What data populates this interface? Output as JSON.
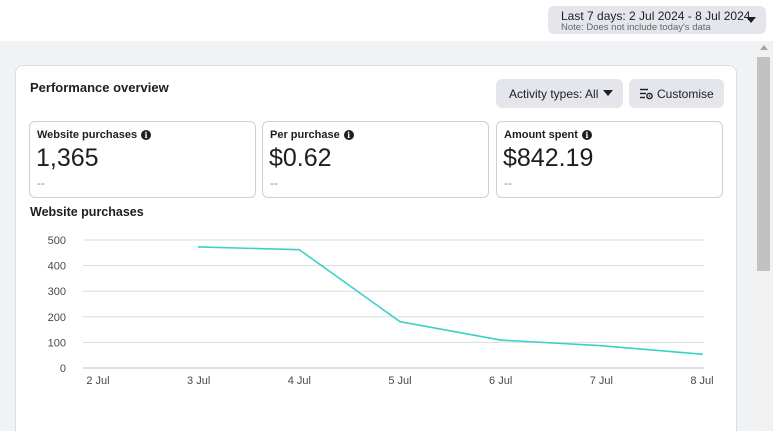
{
  "date_picker": {
    "label": "Last 7 days: 2 Jul 2024 - 8 Jul 2024",
    "note": "Note: Does not include today's data",
    "icon": "chevron-down-icon"
  },
  "card": {
    "title": "Performance overview",
    "activity_button": "Activity types: All",
    "customise_button": "Customise",
    "customise_icon": "customise-sliders-icon"
  },
  "metrics": [
    {
      "label": "Website purchases",
      "value": "1,365",
      "compare": "--"
    },
    {
      "label": "Per purchase",
      "value": "$0.62",
      "compare": "--"
    },
    {
      "label": "Amount spent",
      "value": "$842.19",
      "compare": "--"
    }
  ],
  "chart_title": "Website purchases",
  "chart_data": {
    "type": "line",
    "categories": [
      "2 Jul",
      "3 Jul",
      "4 Jul",
      "5 Jul",
      "6 Jul",
      "7 Jul",
      "8 Jul"
    ],
    "series": [
      {
        "values": [
          null,
          473,
          462,
          181,
          109,
          87,
          54
        ]
      }
    ],
    "ylim": [
      0,
      500
    ],
    "yticks": [
      0,
      100,
      200,
      300,
      400,
      500
    ],
    "grid": true,
    "line_color": "#3dd0c7",
    "grid_color": "#dadde1"
  }
}
